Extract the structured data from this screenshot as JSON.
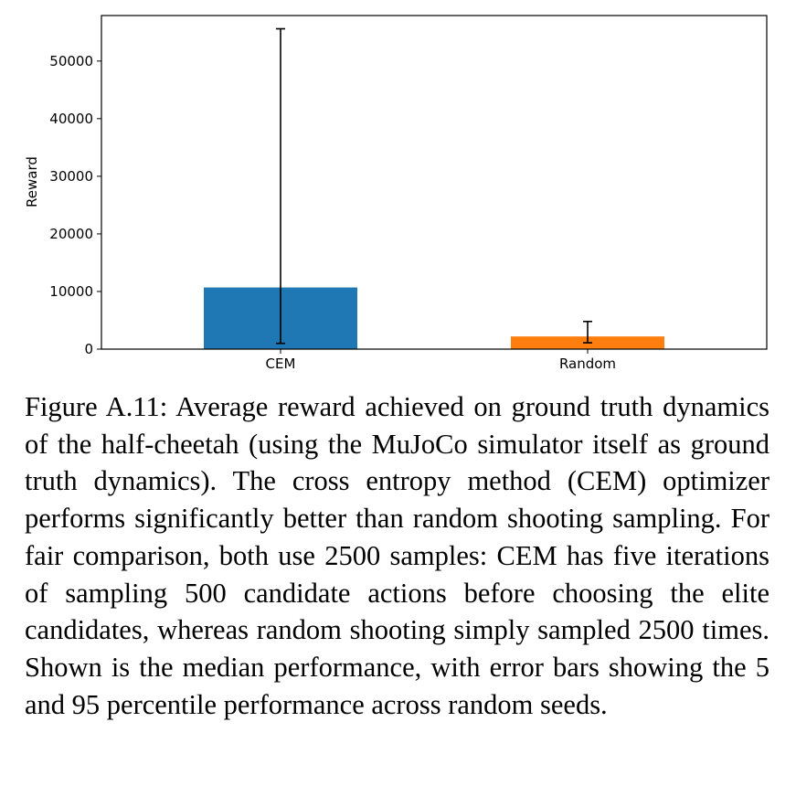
{
  "chart_data": {
    "type": "bar",
    "categories": [
      "CEM",
      "Random"
    ],
    "values": [
      10700,
      2200
    ],
    "error_low": [
      1000,
      1100
    ],
    "error_high": [
      55600,
      4800
    ],
    "colors": [
      "#1f77b4",
      "#ff7f0e"
    ],
    "ylabel": "Reward",
    "ylim": [
      0,
      57900
    ],
    "yticks": [
      0,
      10000,
      20000,
      30000,
      40000,
      50000
    ],
    "grid": false
  },
  "caption": "Figure A.11: Average reward achieved on ground truth dynamics of the half-cheetah (using the MuJoCo simulator itself as ground truth dynamics). The cross entropy method (CEM) optimizer performs significantly better than random shooting sampling. For fair comparison, both use 2500 samples: CEM has five iterations of sampling 500 candidate actions before choosing the elite candidates, whereas random shooting simply sampled 2500 times. Shown is the median performance, with error bars showing the 5 and 95 percentile performance across random seeds."
}
